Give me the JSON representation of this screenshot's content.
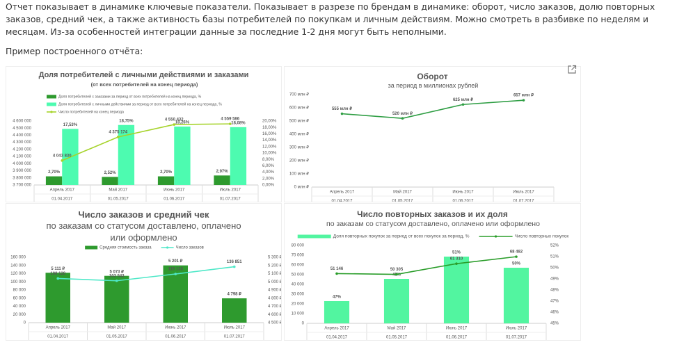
{
  "paragraph": "Отчет показывает в динамике ключевые показатели. Показывает в разрезе по брендам в динамике: оборот, число заказов, долю повторных заказов, средний чек, а также активность базы потребителей по покупкам и личным действиям. Можно смотреть в разбивке по неделям и месяцам. Из-за особенностей интеграции данные за последние 1-2 дня могут быть неполными.",
  "caption": "Пример построенного отчёта:",
  "chart_data": [
    {
      "type": "combo",
      "title": "Доля потребителей с личными действиями и заказами",
      "subtitle": "(от всех потребителей на конец периода)",
      "legend": "top-left",
      "categories": [
        "Апрель 2017",
        "Май 2017",
        "Июнь 2017",
        "Июль 2017"
      ],
      "category_dates": [
        "01.04.2017",
        "01.05.2017",
        "01.06.2017",
        "01.07.2017"
      ],
      "ylim": [
        3700000,
        4600000
      ],
      "yticks": [
        {
          "value": 3700000,
          "label": "3 700 000"
        },
        {
          "value": 3800000,
          "label": "3 800 000"
        },
        {
          "value": 3900000,
          "label": "3 900 000"
        },
        {
          "value": 4000000,
          "label": "4 000 000"
        },
        {
          "value": 4100000,
          "label": "4 100 000"
        },
        {
          "value": 4200000,
          "label": "4 200 000"
        },
        {
          "value": 4300000,
          "label": "4 300 000"
        },
        {
          "value": 4400000,
          "label": "4 400 000"
        },
        {
          "value": 4500000,
          "label": "4 500 000"
        },
        {
          "value": 4600000,
          "label": "4 600 000"
        }
      ],
      "y2lim": [
        0,
        20
      ],
      "y2ticks": [
        {
          "value": 0,
          "label": "0,00%"
        },
        {
          "value": 2,
          "label": "2,00%"
        },
        {
          "value": 4,
          "label": "4,00%"
        },
        {
          "value": 6,
          "label": "6,00%"
        },
        {
          "value": 8,
          "label": "8,00%"
        },
        {
          "value": 10,
          "label": "10,00%"
        },
        {
          "value": 12,
          "label": "12,00%"
        },
        {
          "value": 14,
          "label": "14,00%"
        },
        {
          "value": 16,
          "label": "16,00%"
        },
        {
          "value": 18,
          "label": "18,00%"
        },
        {
          "value": 20,
          "label": "20,00%"
        }
      ],
      "series": [
        {
          "name": "Доля потребителей с заказами за период от всех потребителей на конец периода, %",
          "type": "bar",
          "axis": "y2",
          "color": "#2e9a2e",
          "values": [
            2.7,
            2.52,
            2.7,
            2.97
          ],
          "value_labels": [
            "2,70%",
            "2,52%",
            "2,70%",
            "2,97%"
          ]
        },
        {
          "name": "Доля потребителей с личными действиями за период от всех потребителей на конец периода, %",
          "type": "bar",
          "axis": "y2",
          "color": "#4dfbb0",
          "values": [
            17.53,
            18.75,
            18.26,
            18.08
          ],
          "value_labels": [
            "17,53%",
            "18,75%",
            "18,26%",
            "18,08%"
          ]
        },
        {
          "name": "Число потребителей на конец периода",
          "type": "line",
          "color": "#a6d32b",
          "values": [
            4043830,
            4375174,
            4550432,
            4559586
          ],
          "value_labels": [
            "4 043 830",
            "4 375 174",
            "4 550 432",
            "4 559 586"
          ]
        }
      ]
    },
    {
      "type": "line",
      "title": "Оборот",
      "subtitle": "за период в миллионах рублей",
      "categories": [
        "Апрель 2017",
        "Май 2017",
        "Июнь 2017",
        "Июль 2017"
      ],
      "category_dates": [
        "01.04.2017",
        "01.05.2017",
        "01.06.2017",
        "01.07.2017"
      ],
      "ylim": [
        0,
        700
      ],
      "yticks": [
        {
          "value": 0,
          "label": "0 млн ₽"
        },
        {
          "value": 100,
          "label": "100 млн ₽"
        },
        {
          "value": 200,
          "label": "200 млн ₽"
        },
        {
          "value": 300,
          "label": "300 млн ₽"
        },
        {
          "value": 400,
          "label": "400 млн ₽"
        },
        {
          "value": 500,
          "label": "500 млн ₽"
        },
        {
          "value": 600,
          "label": "600 млн ₽"
        },
        {
          "value": 700,
          "label": "700 млн ₽"
        }
      ],
      "series": [
        {
          "type": "line",
          "color": "#2f9e44",
          "values": [
            555,
            520,
            625,
            657
          ],
          "value_labels": [
            "555 млн ₽",
            "520 млн ₽",
            "625 млн ₽",
            "657 млн ₽"
          ]
        }
      ]
    },
    {
      "type": "combo",
      "title": "Число заказов и средний чек",
      "subtitle": "по заказам со статусом доставлено, оплачено или оформлено",
      "legend": "top",
      "categories": [
        "Апрель 2017",
        "Май 2017",
        "Июнь 2017",
        "Июль 2017"
      ],
      "category_dates": [
        "01.04.2017",
        "01.05.2017",
        "01.06.2017",
        "01.07.2017"
      ],
      "ylim": [
        0,
        160000
      ],
      "yticks": [
        0,
        {
          "value": 20000,
          "label": "20 000"
        },
        {
          "value": 40000,
          "label": "40 000"
        },
        {
          "value": 60000,
          "label": "60 000"
        },
        {
          "value": 80000,
          "label": "80 000"
        },
        {
          "value": 100000,
          "label": "100 000"
        },
        {
          "value": 120000,
          "label": "120 000"
        },
        {
          "value": 140000,
          "label": "140 000"
        },
        {
          "value": 160000,
          "label": "160 000"
        }
      ],
      "y2lim": [
        4500,
        5300
      ],
      "y2ticks": [
        {
          "value": 4500,
          "label": "4 500 ₽"
        },
        {
          "value": 4600,
          "label": "4 600 ₽"
        },
        {
          "value": 4700,
          "label": "4 700 ₽"
        },
        {
          "value": 4800,
          "label": "4 800 ₽"
        },
        {
          "value": 4900,
          "label": "4 900 ₽"
        },
        {
          "value": 5000,
          "label": "5 000 ₽"
        },
        {
          "value": 5100,
          "label": "5 100 ₽"
        },
        {
          "value": 5200,
          "label": "5 200 ₽"
        },
        {
          "value": 5300,
          "label": "5 300 ₽"
        }
      ],
      "series": [
        {
          "name": "Средняя стоимость заказа",
          "type": "bar",
          "axis": "y2",
          "color": "#2e9a2e",
          "values": [
            5111,
            5073,
            5201,
            4798
          ],
          "value_labels": [
            "5 111 ₽",
            "5 073 ₽",
            "5 201 ₽",
            "4 798 ₽"
          ]
        },
        {
          "name": "Число заказов",
          "type": "line",
          "color": "#4fe8c8",
          "values": [
            108128,
            102543,
            119135,
            136851
          ],
          "value_labels": [
            "108 128",
            "102 543",
            "119 135",
            "136 851"
          ]
        }
      ]
    },
    {
      "type": "combo",
      "title": "Число повторных заказов и их доля",
      "subtitle": "по заказам со статусом доставлено, оплачено или оформлено",
      "legend": "top",
      "categories": [
        "Апрель 2017",
        "Май 2017",
        "Июнь 2017",
        "Июль 2017"
      ],
      "category_dates": [
        "01.04.2017",
        "01.05.2017",
        "01.06.2017",
        "01.07.2017"
      ],
      "ylim": [
        0,
        80000
      ],
      "yticks": [
        0,
        {
          "value": 10000,
          "label": "10 000"
        },
        {
          "value": 20000,
          "label": "20 000"
        },
        {
          "value": 30000,
          "label": "30 000"
        },
        {
          "value": 40000,
          "label": "40 000"
        },
        {
          "value": 50000,
          "label": "50 000"
        },
        {
          "value": 60000,
          "label": "60 000"
        },
        {
          "value": 70000,
          "label": "70 000"
        },
        {
          "value": 80000,
          "label": "80 000"
        }
      ],
      "y2lim": [
        45,
        52
      ],
      "y2ticks": [
        {
          "value": 45,
          "label": "45%"
        },
        {
          "value": 46,
          "label": "46%"
        },
        {
          "value": 47,
          "label": "47%"
        },
        {
          "value": 48,
          "label": "48%"
        },
        {
          "value": 49,
          "label": "49%"
        },
        {
          "value": 50,
          "label": "50%"
        },
        {
          "value": 51,
          "label": "51%"
        },
        {
          "value": 52,
          "label": "52%"
        }
      ],
      "series": [
        {
          "name": "Доля повторных покупок за период от всех покупок за период, %",
          "type": "bar",
          "axis": "y2",
          "color": "#52f5a0",
          "values": [
            47,
            49,
            51,
            50
          ],
          "value_labels": [
            "47%",
            "49%",
            "51%",
            "50%"
          ]
        },
        {
          "name": "Число повторных покупок",
          "type": "line",
          "color": "#2a9d2a",
          "values": [
            51146,
            50305,
            61310,
            68482
          ],
          "value_labels": [
            "51 146",
            "50 305",
            "61 310",
            "68 482"
          ]
        }
      ]
    }
  ]
}
